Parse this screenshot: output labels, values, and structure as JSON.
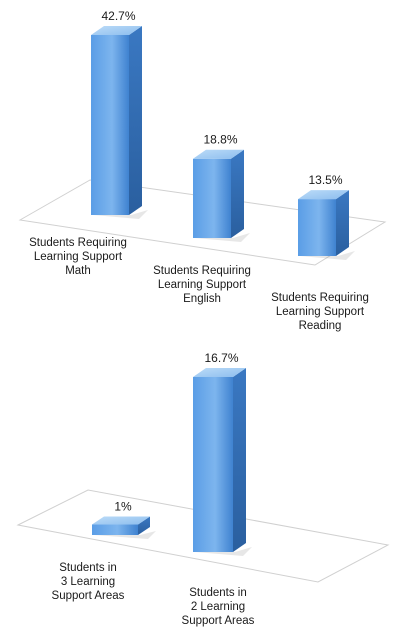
{
  "chart_data": [
    {
      "type": "bar",
      "categories": [
        "Students Requiring Learning Support Math",
        "Students Requiring Learning Support English",
        "Students Requiring Learning Support Reading"
      ],
      "category_lines": [
        [
          "Students Requiring",
          "Learning Support",
          "Math"
        ],
        [
          "Students Requiring",
          "Learning Support",
          "English"
        ],
        [
          "Students Requiring",
          "Learning Support",
          "Reading"
        ]
      ],
      "values": [
        42.7,
        18.8,
        13.5
      ],
      "value_labels": [
        "42.7%",
        "18.8%",
        "13.5%"
      ],
      "unit": "%",
      "ylim": [
        0,
        42.7
      ],
      "grid": false,
      "style": "3d-bar",
      "bar_color": "#4a8fd9",
      "bar_top_color": "#9fc8f2",
      "bar_side_color": "#2f6fb8"
    },
    {
      "type": "bar",
      "categories": [
        "Students in 3 Learning Support Areas",
        "Students in 2 Learning Support Areas"
      ],
      "category_lines": [
        [
          "Students in",
          "3 Learning",
          "Support Areas"
        ],
        [
          "Students in",
          "2 Learning",
          "Support Areas"
        ]
      ],
      "values": [
        1,
        16.7
      ],
      "value_labels": [
        "1%",
        "16.7%"
      ],
      "unit": "%",
      "ylim": [
        0,
        16.7
      ],
      "grid": false,
      "style": "3d-bar",
      "bar_color": "#4a8fd9",
      "bar_top_color": "#9fc8f2",
      "bar_side_color": "#2f6fb8"
    }
  ]
}
